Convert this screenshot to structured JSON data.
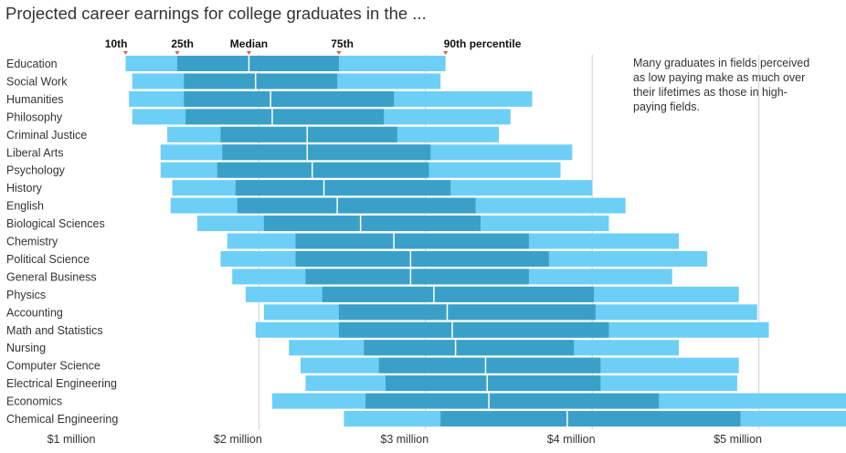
{
  "title": "Projected career earnings for college graduates in the ...",
  "annotation": "Many graduates in fields perceived as low paying make as much over their lifetimes as those in high-paying fields.",
  "colors": {
    "outer": "#6dcff6",
    "inner": "#3aa0c8",
    "median": "#ffffff",
    "grid": "#cfcfcf"
  },
  "chart_data": {
    "type": "bar",
    "subtype": "range-bar (percentile bands)",
    "title": "Projected career earnings for college graduates in the ...",
    "percentile_labels": [
      "10th",
      "25th",
      "Median",
      "75th",
      "90th percentile"
    ],
    "x_ticks": [
      {
        "value": 1,
        "label": "$1 million"
      },
      {
        "value": 2,
        "label": "$2 million"
      },
      {
        "value": 3,
        "label": "$3 million"
      },
      {
        "value": 4,
        "label": "$4 million"
      },
      {
        "value": 5,
        "label": "$5 million"
      }
    ],
    "xlim": [
      0.76,
      5.84
    ],
    "unit": "millions of dollars",
    "grid": true,
    "categories": [
      "Education",
      "Social Work",
      "Humanities",
      "Philosophy",
      "Criminal Justice",
      "Liberal Arts",
      "Psychology",
      "History",
      "English",
      "Biological Sciences",
      "Chemistry",
      "Political Science",
      "General Business",
      "Physics",
      "Accounting",
      "Math and Statistics",
      "Nursing",
      "Computer Science",
      "Electrical Engineering",
      "Economics",
      "Chemical Engineering"
    ],
    "series": [
      {
        "name": "10th",
        "values": [
          1.2,
          1.24,
          1.22,
          1.24,
          1.45,
          1.41,
          1.41,
          1.48,
          1.47,
          1.63,
          1.81,
          1.77,
          1.84,
          1.92,
          2.03,
          1.98,
          2.18,
          2.25,
          2.28,
          2.08,
          2.51
        ]
      },
      {
        "name": "25th",
        "values": [
          1.51,
          1.55,
          1.55,
          1.56,
          1.77,
          1.78,
          1.75,
          1.86,
          1.87,
          2.03,
          2.22,
          2.22,
          2.28,
          2.38,
          2.48,
          2.48,
          2.63,
          2.72,
          2.76,
          2.64,
          3.09
        ]
      },
      {
        "name": "Median",
        "values": [
          1.94,
          1.98,
          2.07,
          2.08,
          2.29,
          2.29,
          2.32,
          2.39,
          2.47,
          2.61,
          2.81,
          2.91,
          2.91,
          3.05,
          3.13,
          3.16,
          3.18,
          3.36,
          3.37,
          3.38,
          3.85
        ]
      },
      {
        "name": "75th",
        "values": [
          2.48,
          2.47,
          2.81,
          2.75,
          2.83,
          3.03,
          3.02,
          3.15,
          3.3,
          3.33,
          3.62,
          3.74,
          3.62,
          4.01,
          4.02,
          4.1,
          3.89,
          4.05,
          4.05,
          4.4,
          4.89
        ]
      },
      {
        "name": "90th percentile",
        "values": [
          3.12,
          3.09,
          3.64,
          3.51,
          3.44,
          3.88,
          3.81,
          4.0,
          4.2,
          4.1,
          4.52,
          4.69,
          4.48,
          4.88,
          4.99,
          5.06,
          4.52,
          4.88,
          4.87,
          5.59,
          5.84
        ]
      }
    ]
  }
}
